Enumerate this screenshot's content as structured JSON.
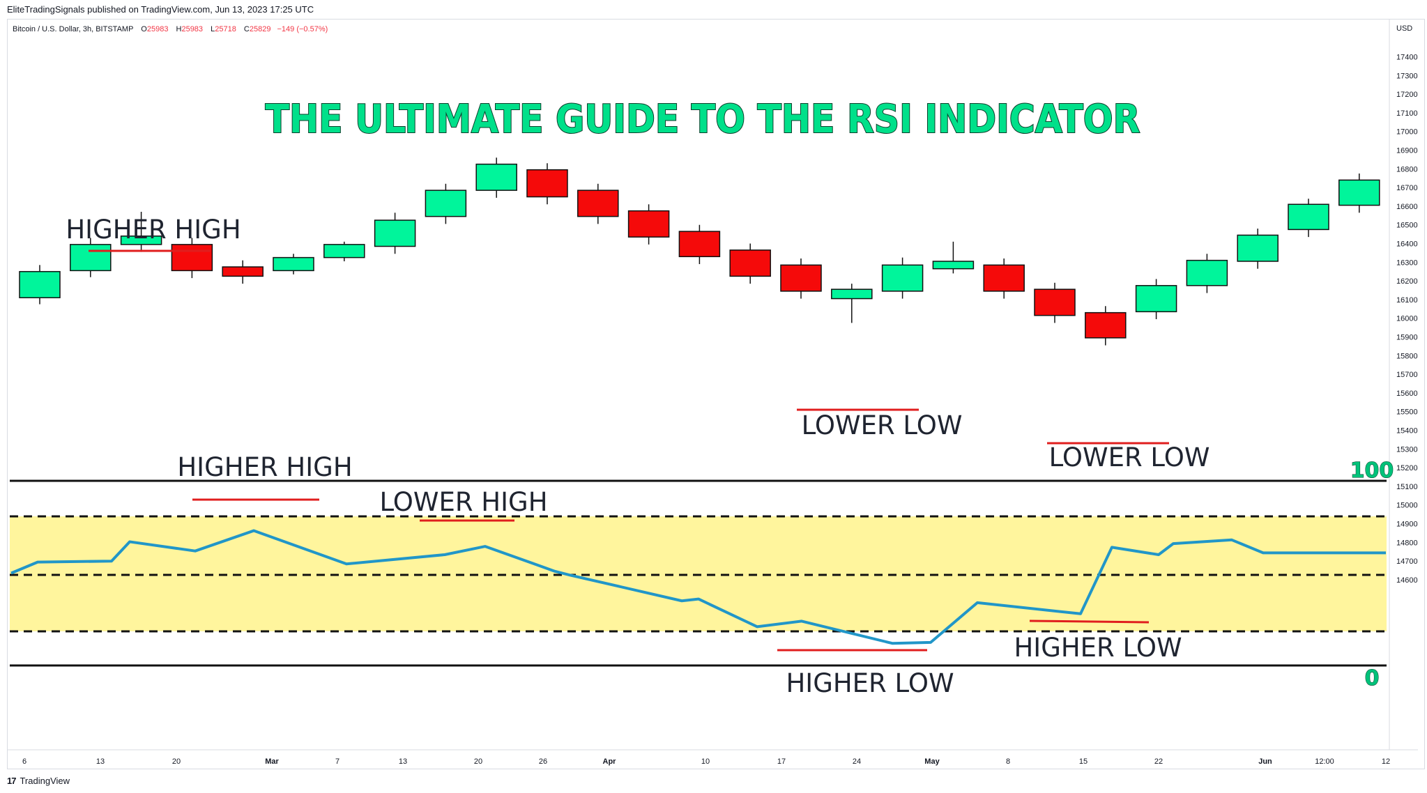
{
  "header": {
    "published": "EliteTradingSignals published on TradingView.com, Jun 13, 2023 17:25 UTC"
  },
  "legend": {
    "symbol": "Bitcoin / U.S. Dollar, 3h, BITSTAMP",
    "o_label": "O",
    "o_value": "25983",
    "h_label": "H",
    "h_value": "25983",
    "l_label": "L",
    "l_value": "25718",
    "c_label": "C",
    "c_value": "25829",
    "change": "−149 (−0.57%)"
  },
  "currency": "USD",
  "footer": {
    "logo_mark": "17",
    "brand": "TradingView"
  },
  "colors": {
    "up": "#00f59b",
    "down": "#f50a0a",
    "rsi_line": "#2196c8",
    "rsi_band": "#fff59d",
    "annotation_line": "#e01e1e",
    "title": "#00e08a"
  },
  "annotations": {
    "title": "THE ULTIMATE GUIDE TO THE RSI INDICATOR",
    "price_higher_high": "HIGHER HIGH",
    "price_lower_low_1": "LOWER LOW",
    "price_lower_low_2": "LOWER LOW",
    "rsi_higher_high": "HIGHER HIGH",
    "rsi_lower_high": "LOWER HIGH",
    "rsi_higher_low_1": "HIGHER LOW",
    "rsi_higher_low_2": "HIGHER LOW",
    "rsi_100": "100",
    "rsi_0": "0"
  },
  "chart_data": {
    "type": "candlestick",
    "y_axis": {
      "ticks": [
        17400,
        17300,
        17200,
        17100,
        17000,
        16900,
        16800,
        16700,
        16600,
        16500,
        16400,
        16300,
        16200,
        16100,
        16000,
        15900,
        15800,
        15700,
        15600,
        15500,
        15400,
        15300,
        15200,
        15100,
        15000,
        14900,
        14800,
        14700,
        14600
      ],
      "range": [
        14560,
        17460
      ]
    },
    "x_axis": {
      "ticks": [
        {
          "label": "6",
          "bold": false
        },
        {
          "label": "13",
          "bold": false
        },
        {
          "label": "20",
          "bold": false
        },
        {
          "label": "Mar",
          "bold": true
        },
        {
          "label": "7",
          "bold": false
        },
        {
          "label": "13",
          "bold": false
        },
        {
          "label": "20",
          "bold": false
        },
        {
          "label": "26",
          "bold": false
        },
        {
          "label": "Apr",
          "bold": true
        },
        {
          "label": "10",
          "bold": false
        },
        {
          "label": "17",
          "bold": false
        },
        {
          "label": "24",
          "bold": false
        },
        {
          "label": "May",
          "bold": true
        },
        {
          "label": "8",
          "bold": false
        },
        {
          "label": "15",
          "bold": false
        },
        {
          "label": "22",
          "bold": false
        },
        {
          "label": "Jun",
          "bold": true
        },
        {
          "label": "12:00",
          "bold": false
        },
        {
          "label": "12",
          "bold": false
        }
      ]
    },
    "candles": [
      {
        "o": 16110,
        "h": 16285,
        "l": 16075,
        "c": 16250
      },
      {
        "o": 16255,
        "h": 16430,
        "l": 16220,
        "c": 16395
      },
      {
        "o": 16395,
        "h": 16570,
        "l": 16355,
        "c": 16440
      },
      {
        "o": 16395,
        "h": 16430,
        "l": 16215,
        "c": 16255
      },
      {
        "o": 16275,
        "h": 16310,
        "l": 16185,
        "c": 16225
      },
      {
        "o": 16255,
        "h": 16345,
        "l": 16235,
        "c": 16325
      },
      {
        "o": 16325,
        "h": 16410,
        "l": 16305,
        "c": 16395
      },
      {
        "o": 16385,
        "h": 16565,
        "l": 16345,
        "c": 16525
      },
      {
        "o": 16545,
        "h": 16720,
        "l": 16505,
        "c": 16685
      },
      {
        "o": 16685,
        "h": 16860,
        "l": 16645,
        "c": 16825
      },
      {
        "o": 16795,
        "h": 16830,
        "l": 16610,
        "c": 16650
      },
      {
        "o": 16685,
        "h": 16720,
        "l": 16505,
        "c": 16545
      },
      {
        "o": 16575,
        "h": 16610,
        "l": 16395,
        "c": 16435
      },
      {
        "o": 16465,
        "h": 16500,
        "l": 16290,
        "c": 16330
      },
      {
        "o": 16365,
        "h": 16400,
        "l": 16185,
        "c": 16225
      },
      {
        "o": 16285,
        "h": 16320,
        "l": 16105,
        "c": 16145
      },
      {
        "o": 16105,
        "h": 16185,
        "l": 15975,
        "c": 16155
      },
      {
        "o": 16145,
        "h": 16325,
        "l": 16105,
        "c": 16285
      },
      {
        "o": 16265,
        "h": 16410,
        "l": 16240,
        "c": 16305
      },
      {
        "o": 16285,
        "h": 16320,
        "l": 16105,
        "c": 16145
      },
      {
        "o": 16155,
        "h": 16190,
        "l": 15975,
        "c": 16015
      },
      {
        "o": 16030,
        "h": 16065,
        "l": 15855,
        "c": 15895
      },
      {
        "o": 16035,
        "h": 16210,
        "l": 15995,
        "c": 16175
      },
      {
        "o": 16175,
        "h": 16345,
        "l": 16135,
        "c": 16310
      },
      {
        "o": 16305,
        "h": 16480,
        "l": 16265,
        "c": 16445
      },
      {
        "o": 16475,
        "h": 16640,
        "l": 16435,
        "c": 16610
      },
      {
        "o": 16605,
        "h": 16775,
        "l": 16565,
        "c": 16740
      }
    ],
    "rsi": {
      "upper_band": 70,
      "middle": 50,
      "lower_band": 30,
      "values": [
        50,
        56,
        56.5,
        67,
        62,
        73,
        55,
        60,
        64.5,
        51,
        49,
        35,
        36,
        21,
        24,
        12,
        12.5,
        34,
        28,
        64,
        60,
        66,
        68,
        61,
        61
      ]
    }
  }
}
